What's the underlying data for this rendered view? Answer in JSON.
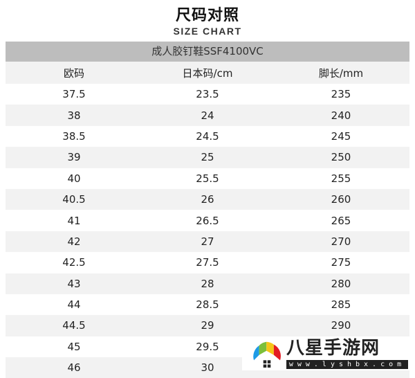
{
  "title": "尺码对照",
  "subtitle": "SIZE CHART",
  "product": "成人胶钉鞋SSF4100VC",
  "columns": [
    "欧码",
    "日本码/cm",
    "脚长/mm"
  ],
  "rows": [
    [
      "37.5",
      "23.5",
      "235"
    ],
    [
      "38",
      "24",
      "240"
    ],
    [
      "38.5",
      "24.5",
      "245"
    ],
    [
      "39",
      "25",
      "250"
    ],
    [
      "40",
      "25.5",
      "255"
    ],
    [
      "40.5",
      "26",
      "260"
    ],
    [
      "41",
      "26.5",
      "265"
    ],
    [
      "42",
      "27",
      "270"
    ],
    [
      "42.5",
      "27.5",
      "275"
    ],
    [
      "43",
      "28",
      "280"
    ],
    [
      "44",
      "28.5",
      "285"
    ],
    [
      "44.5",
      "29",
      "290"
    ],
    [
      "45",
      "29.5",
      ""
    ],
    [
      "46",
      "30",
      ""
    ]
  ],
  "watermark": {
    "name": "八星手游网",
    "url": "www.lyshbx.com"
  }
}
